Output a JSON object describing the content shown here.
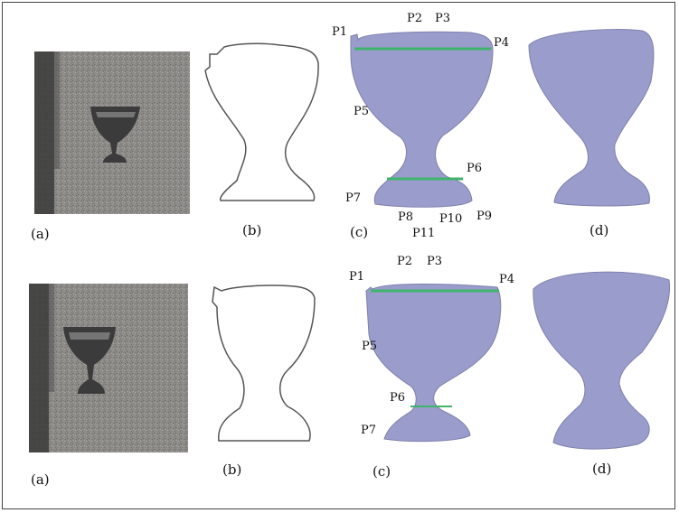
{
  "colors": {
    "silhouette_fill": "#9a9ccb",
    "measure_line": "#3fb46b",
    "outline": "#555555",
    "frame": "#444444"
  },
  "rows": [
    {
      "panel_labels": [
        "(a)",
        "(b)",
        "(c)",
        "(d)"
      ],
      "points": [
        "P1",
        "P2",
        "P3",
        "P4",
        "P5",
        "P6",
        "P7",
        "P8",
        "P9",
        "P10",
        "P11"
      ]
    },
    {
      "panel_labels": [
        "(a)",
        "(b)",
        "(c)",
        "(d)"
      ],
      "points": [
        "P1",
        "P2",
        "P3",
        "P4",
        "P5",
        "P6",
        "P7"
      ]
    }
  ]
}
